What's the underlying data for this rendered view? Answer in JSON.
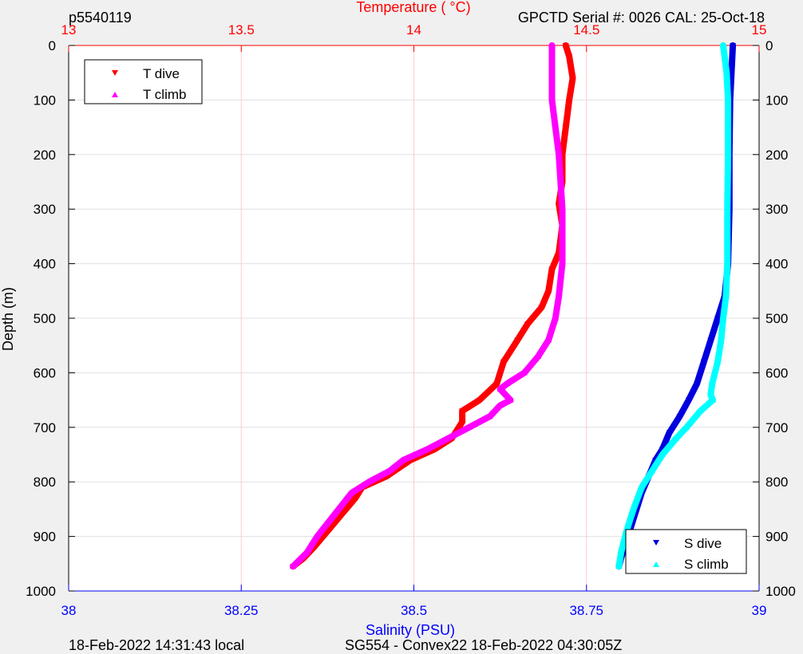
{
  "header": {
    "left_label": "p5540119",
    "right_label": "GPCTD Serial #: 0026 CAL: 25-Oct-18"
  },
  "footer": {
    "left_label": "18-Feb-2022 14:31:43 local",
    "center_label": "SG554 - Convex22 18-Feb-2022 04:30:05Z"
  },
  "colors": {
    "temperature_axis": "#ff0000",
    "salinity_axis": "#0000ff",
    "t_dive": "#ff0000",
    "t_climb": "#ff00ff",
    "s_dive": "#0000dd",
    "s_climb": "#00ffff",
    "temperature_grid": "#ffcccc",
    "depth_grid": "#e0e0e0"
  },
  "chart_data": {
    "type": "line",
    "ylabel": "Depth (m)",
    "xlabel_top": "Temperature (  °C)",
    "xlabel_bottom": "Salinity (PSU)",
    "ylim": [
      0,
      1000
    ],
    "y_reversed": true,
    "yticks": [
      "0",
      "100",
      "200",
      "300",
      "400",
      "500",
      "600",
      "700",
      "800",
      "900",
      "1000"
    ],
    "temperature_axis": {
      "range": [
        13,
        15
      ],
      "ticks": [
        "13",
        "13.5",
        "14",
        "14.5",
        "15"
      ]
    },
    "salinity_axis": {
      "range": [
        38,
        39
      ],
      "ticks": [
        "38",
        "38.25",
        "38.5",
        "38.75",
        "39"
      ]
    },
    "grid": true,
    "legend_temperature": {
      "placement": "top-left"
    },
    "legend_salinity": {
      "placement": "bottom-right"
    },
    "series": [
      {
        "name": "T dive",
        "axis": "temperature",
        "marker": "triangle-down",
        "points": [
          [
            14.44,
            0
          ],
          [
            14.45,
            20
          ],
          [
            14.46,
            60
          ],
          [
            14.45,
            100
          ],
          [
            14.44,
            150
          ],
          [
            14.43,
            200
          ],
          [
            14.43,
            250
          ],
          [
            14.42,
            290
          ],
          [
            14.43,
            330
          ],
          [
            14.42,
            380
          ],
          [
            14.4,
            410
          ],
          [
            14.39,
            450
          ],
          [
            14.37,
            480
          ],
          [
            14.33,
            510
          ],
          [
            14.3,
            540
          ],
          [
            14.26,
            580
          ],
          [
            14.24,
            620
          ],
          [
            14.19,
            650
          ],
          [
            14.14,
            670
          ],
          [
            14.14,
            690
          ],
          [
            14.11,
            720
          ],
          [
            14.06,
            740
          ],
          [
            13.99,
            760
          ],
          [
            13.92,
            790
          ],
          [
            13.85,
            810
          ],
          [
            13.83,
            830
          ],
          [
            13.79,
            860
          ],
          [
            13.75,
            890
          ],
          [
            13.71,
            920
          ],
          [
            13.68,
            940
          ],
          [
            13.65,
            955
          ]
        ]
      },
      {
        "name": "T climb",
        "axis": "temperature",
        "marker": "triangle-up",
        "points": [
          [
            14.4,
            0
          ],
          [
            14.4,
            50
          ],
          [
            14.4,
            100
          ],
          [
            14.42,
            200
          ],
          [
            14.43,
            300
          ],
          [
            14.43,
            400
          ],
          [
            14.42,
            460
          ],
          [
            14.41,
            500
          ],
          [
            14.39,
            540
          ],
          [
            14.36,
            570
          ],
          [
            14.32,
            600
          ],
          [
            14.27,
            620
          ],
          [
            14.25,
            630
          ],
          [
            14.28,
            650
          ],
          [
            14.25,
            660
          ],
          [
            14.22,
            680
          ],
          [
            14.16,
            700
          ],
          [
            14.1,
            720
          ],
          [
            14.04,
            740
          ],
          [
            13.97,
            760
          ],
          [
            13.93,
            780
          ],
          [
            13.87,
            800
          ],
          [
            13.82,
            820
          ],
          [
            13.77,
            860
          ],
          [
            13.72,
            900
          ],
          [
            13.69,
            930
          ],
          [
            13.65,
            955
          ]
        ]
      },
      {
        "name": "S dive",
        "axis": "salinity",
        "marker": "triangle-down",
        "points": [
          [
            38.962,
            0
          ],
          [
            38.96,
            50
          ],
          [
            38.958,
            100
          ],
          [
            38.957,
            200
          ],
          [
            38.957,
            300
          ],
          [
            38.955,
            400
          ],
          [
            38.95,
            460
          ],
          [
            38.94,
            500
          ],
          [
            38.93,
            540
          ],
          [
            38.92,
            580
          ],
          [
            38.91,
            620
          ],
          [
            38.898,
            650
          ],
          [
            38.885,
            680
          ],
          [
            38.87,
            710
          ],
          [
            38.86,
            740
          ],
          [
            38.85,
            760
          ],
          [
            38.84,
            790
          ],
          [
            38.83,
            820
          ],
          [
            38.82,
            860
          ],
          [
            38.81,
            900
          ],
          [
            38.8,
            940
          ],
          [
            38.797,
            955
          ]
        ]
      },
      {
        "name": "S climb",
        "axis": "salinity",
        "marker": "triangle-up",
        "points": [
          [
            38.948,
            0
          ],
          [
            38.953,
            50
          ],
          [
            38.955,
            100
          ],
          [
            38.955,
            200
          ],
          [
            38.954,
            300
          ],
          [
            38.954,
            400
          ],
          [
            38.952,
            460
          ],
          [
            38.948,
            500
          ],
          [
            38.945,
            540
          ],
          [
            38.94,
            580
          ],
          [
            38.932,
            620
          ],
          [
            38.93,
            640
          ],
          [
            38.933,
            650
          ],
          [
            38.915,
            670
          ],
          [
            38.895,
            700
          ],
          [
            38.88,
            720
          ],
          [
            38.86,
            750
          ],
          [
            38.845,
            780
          ],
          [
            38.83,
            810
          ],
          [
            38.818,
            850
          ],
          [
            38.808,
            890
          ],
          [
            38.8,
            930
          ],
          [
            38.797,
            955
          ]
        ]
      }
    ]
  }
}
